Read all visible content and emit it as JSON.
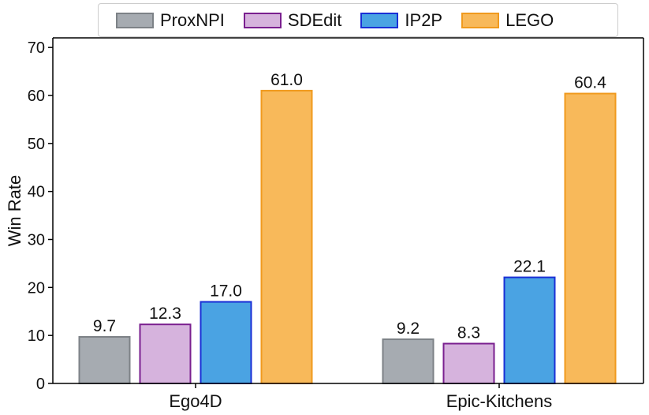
{
  "chart_data": {
    "type": "bar",
    "categories": [
      "Ego4D",
      "Epic-Kitchens"
    ],
    "series": [
      {
        "name": "ProxNPI",
        "values": [
          9.7,
          9.2
        ],
        "fill": "#a6abb1",
        "stroke": "#7d8287"
      },
      {
        "name": "SDEdit",
        "values": [
          12.3,
          8.3
        ],
        "fill": "#d6b3dd",
        "stroke": "#7a1f8f"
      },
      {
        "name": "IP2P",
        "values": [
          17.0,
          22.1
        ],
        "fill": "#4aa3e3",
        "stroke": "#1a2fd6"
      },
      {
        "name": "LEGO",
        "values": [
          61.0,
          60.4
        ],
        "fill": "#f8b95a",
        "stroke": "#f09a1e"
      }
    ],
    "value_labels": [
      [
        "9.7",
        "9.2"
      ],
      [
        "12.3",
        "8.3"
      ],
      [
        "17.0",
        "22.1"
      ],
      [
        "61.0",
        "60.4"
      ]
    ],
    "ylabel": "Win Rate",
    "xlabel": "",
    "title": "",
    "ylim": [
      0,
      72
    ],
    "yticks": [
      "0",
      "10",
      "20",
      "30",
      "40",
      "50",
      "60",
      "70"
    ],
    "legend_position": "top",
    "grid": false
  }
}
